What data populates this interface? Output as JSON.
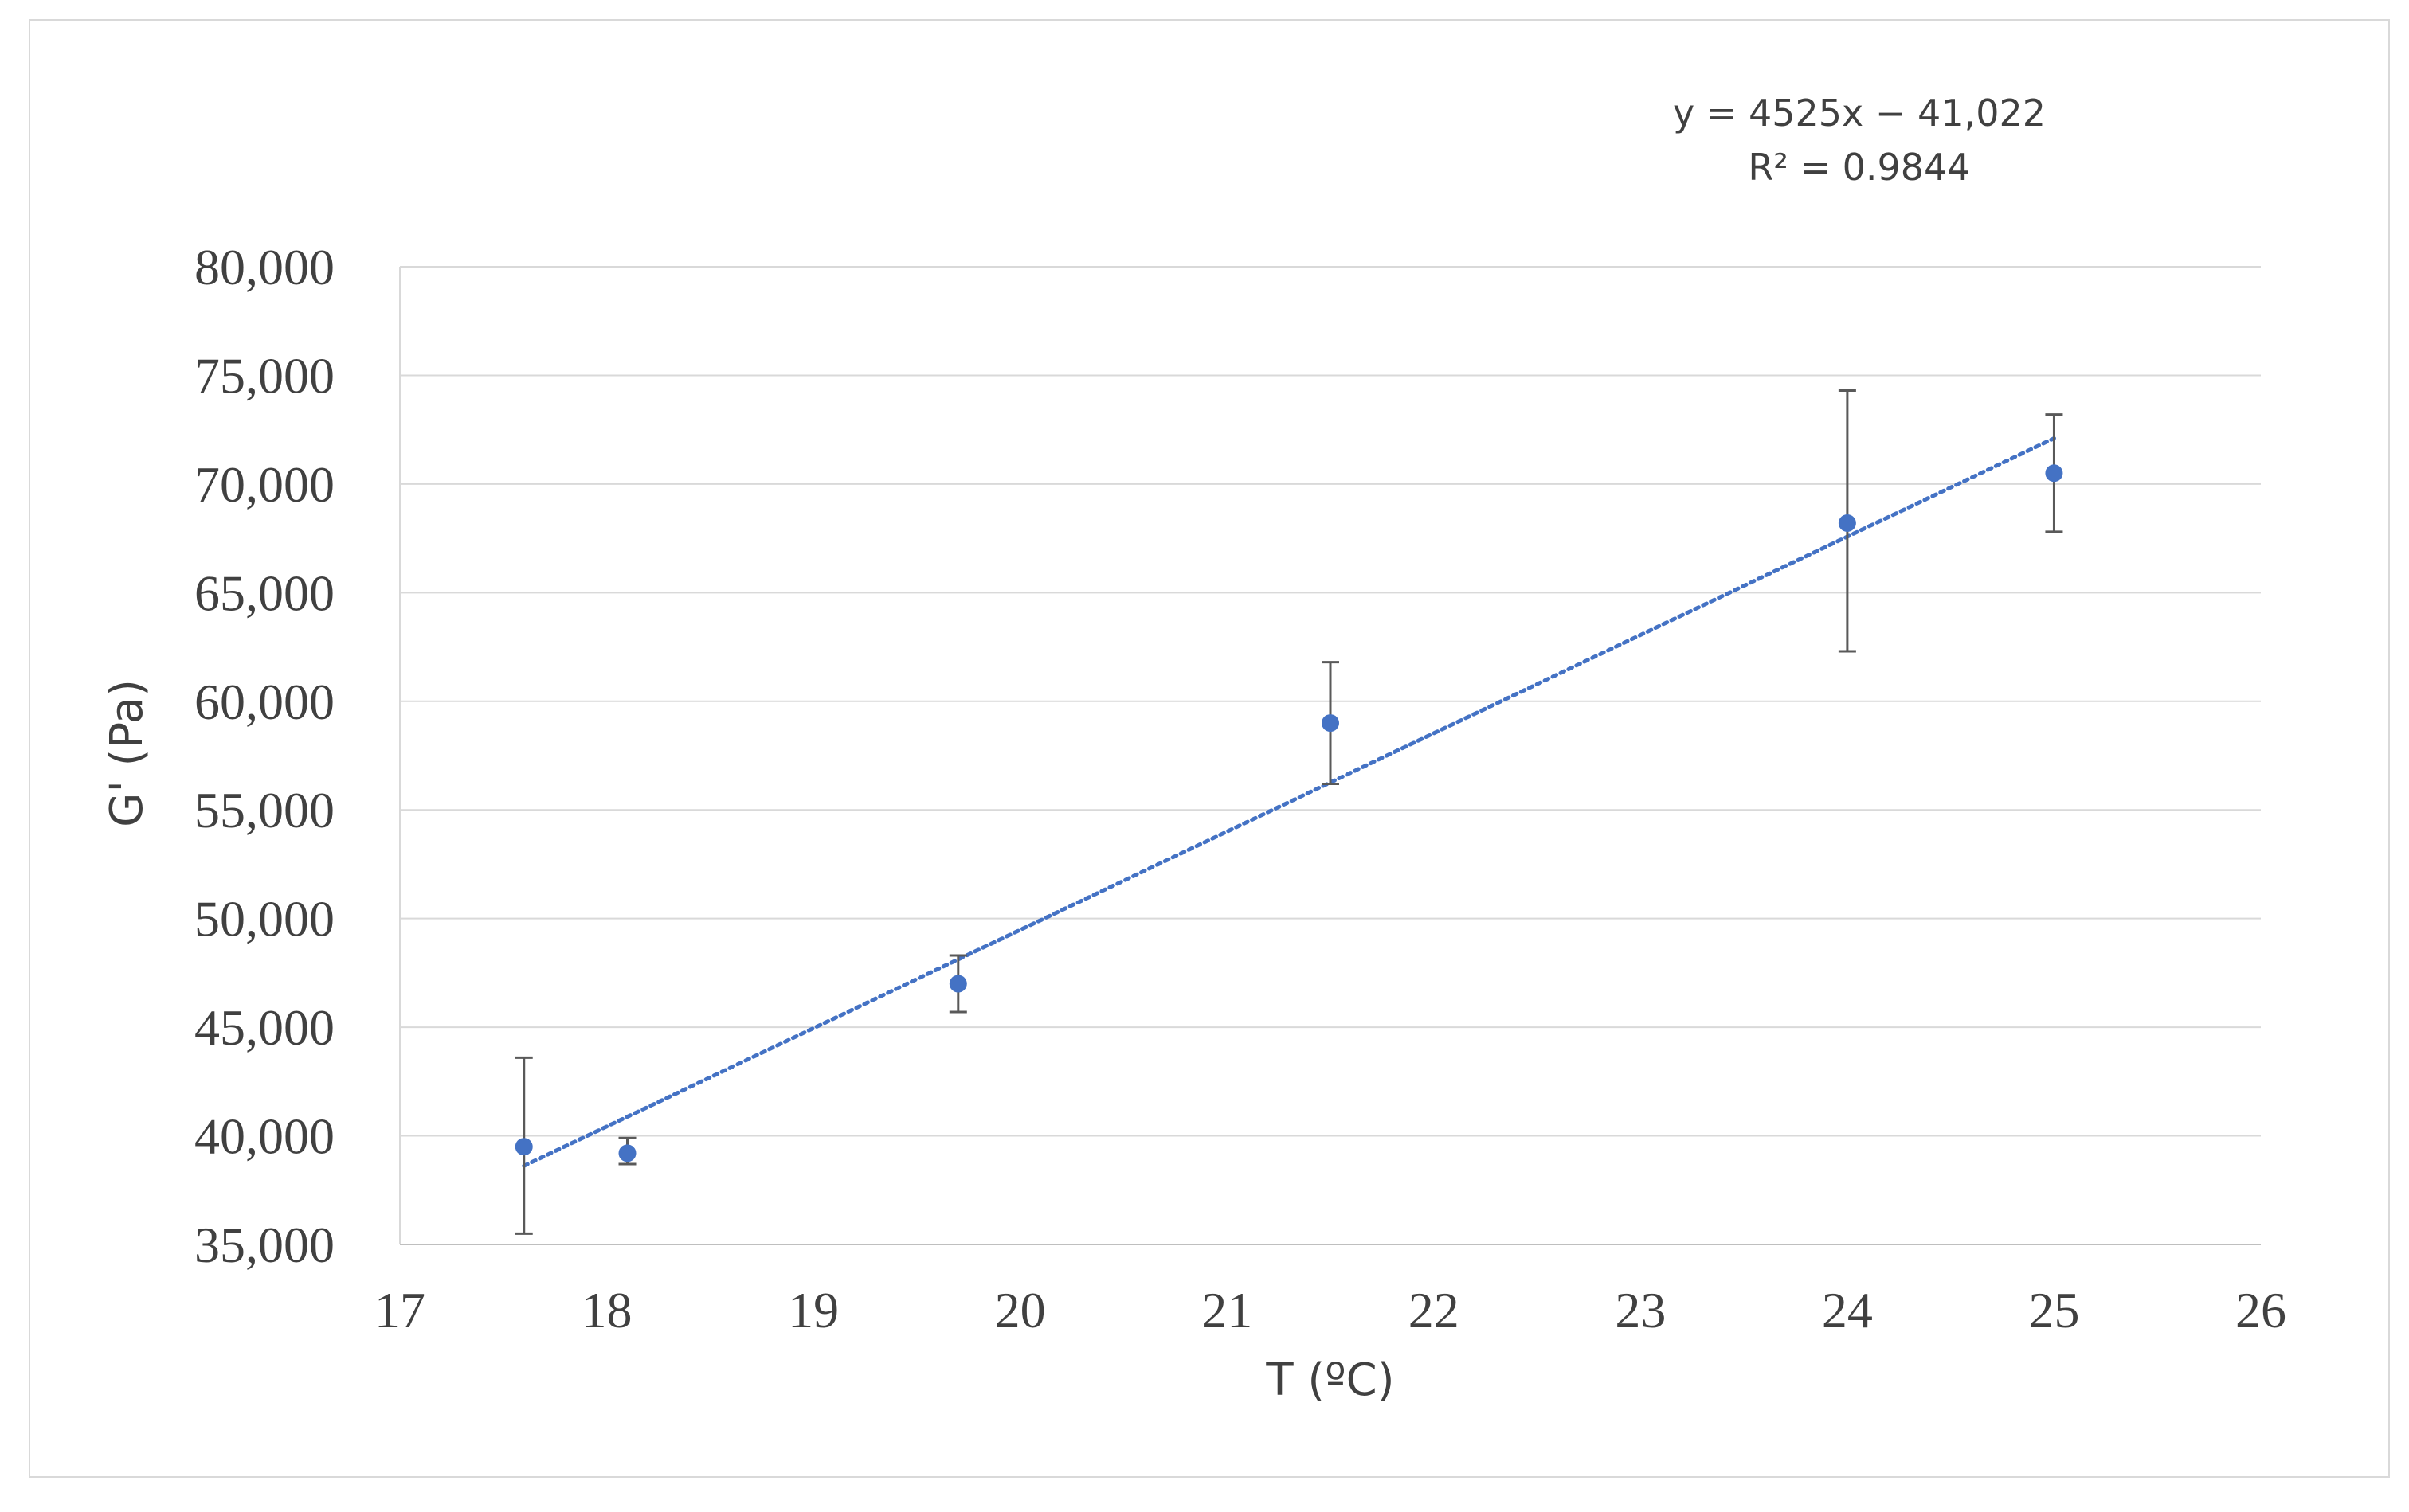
{
  "chart_data": {
    "type": "scatter",
    "title": "",
    "xlabel": "T (ºC)",
    "ylabel": "G' (Pa)",
    "xlim": [
      17,
      26
    ],
    "ylim": [
      35000,
      80000
    ],
    "x_ticks": [
      "17",
      "18",
      "19",
      "20",
      "21",
      "22",
      "23",
      "24",
      "25",
      "26"
    ],
    "y_ticks": [
      "35,000",
      "40,000",
      "45,000",
      "50,000",
      "55,000",
      "60,000",
      "65,000",
      "70,000",
      "75,000",
      "80,000"
    ],
    "grid": true,
    "legend": "none",
    "series": [
      {
        "color": "#4472c4",
        "points": [
          {
            "x": 17.6,
            "y": 39500,
            "err_low": 35500,
            "err_high": 43600
          },
          {
            "x": 18.1,
            "y": 39200,
            "err_low": 38700,
            "err_high": 39900
          },
          {
            "x": 19.7,
            "y": 47000,
            "err_low": 45700,
            "err_high": 48300
          },
          {
            "x": 21.5,
            "y": 59000,
            "err_low": 56200,
            "err_high": 61800
          },
          {
            "x": 24.0,
            "y": 68200,
            "err_low": 62300,
            "err_high": 74300
          },
          {
            "x": 25.0,
            "y": 70500,
            "err_low": 67800,
            "err_high": 73200
          }
        ]
      }
    ],
    "trendline": {
      "type": "linear",
      "style": "dotted",
      "color": "#4472c4",
      "slope": 4525,
      "intercept": -41022,
      "x_from": 17.6,
      "x_to": 25.0,
      "equation": "y = 4525x − 41,022",
      "r_squared": "R² = 0.9844"
    }
  }
}
